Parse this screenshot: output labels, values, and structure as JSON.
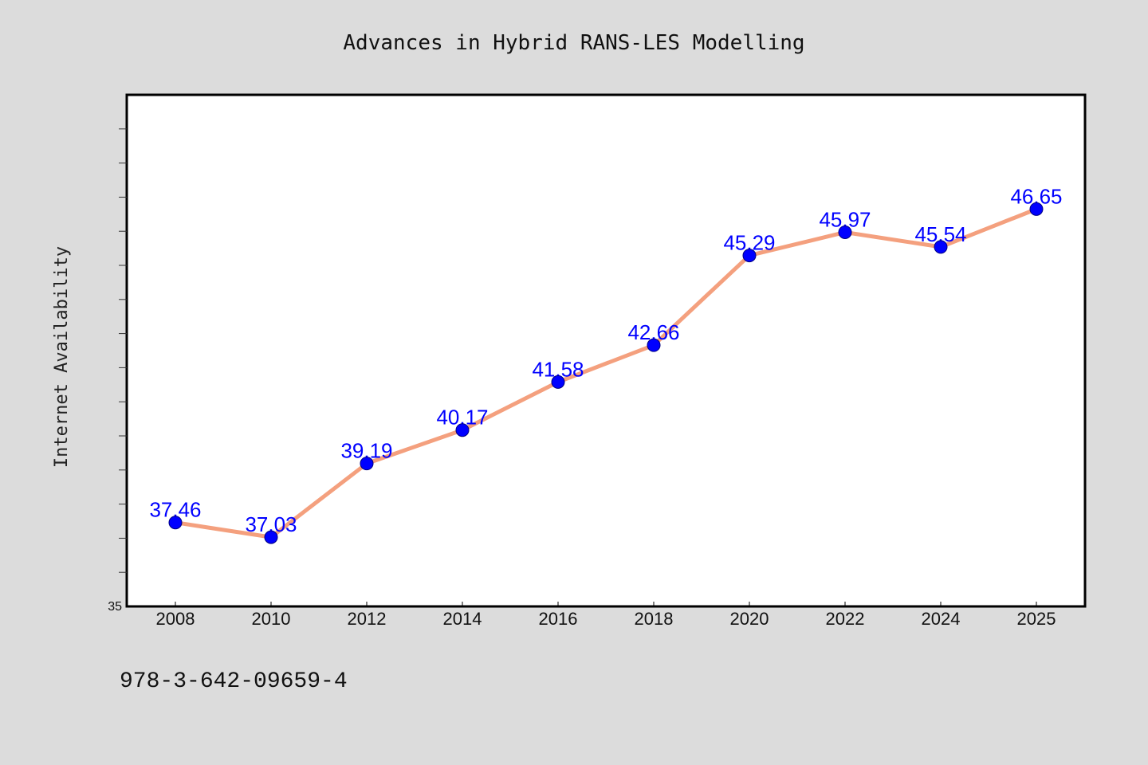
{
  "chart_data": {
    "type": "line",
    "title": "Advances in Hybrid RANS-LES Modelling",
    "xlabel": "",
    "ylabel": "Internet Availability",
    "categories": [
      "2008",
      "2010",
      "2012",
      "2014",
      "2016",
      "2018",
      "2020",
      "2022",
      "2024",
      "2025"
    ],
    "series": [
      {
        "values": [
          37.46,
          37.03,
          39.19,
          40.17,
          41.58,
          42.66,
          45.29,
          45.97,
          45.54,
          46.65
        ],
        "value_labels": [
          "37.46",
          "37.03",
          "39.19",
          "40.17",
          "41.58",
          "42.66",
          "45.29",
          "45.97",
          "45.54",
          "46.65"
        ]
      }
    ],
    "ylim": [
      35,
      50
    ],
    "yticks_labeled": [
      "35"
    ],
    "grid": false,
    "legend": "none",
    "colors": {
      "line": "#f4a07e",
      "marker": "#0000ff",
      "data_label": "#0000ff",
      "plot_background": "#ffffff",
      "figure_background": "#dcdcdc"
    }
  },
  "footer": {
    "isbn": "978-3-642-09659-4"
  }
}
